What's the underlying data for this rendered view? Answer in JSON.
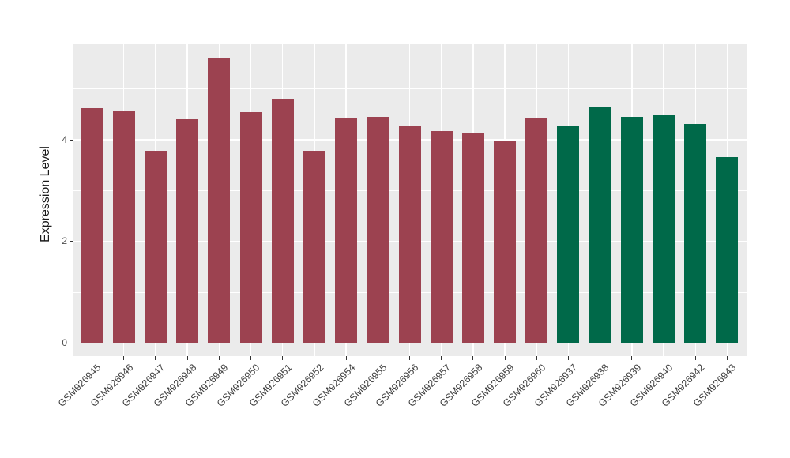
{
  "page": {
    "background": "#FFFFFF"
  },
  "y_axis": {
    "title": "Expression Level",
    "tick_labels": [
      "0",
      "2",
      "4"
    ]
  },
  "chart_data": {
    "type": "bar",
    "title": "",
    "xlabel": "",
    "ylabel": "Expression Level",
    "categories": [
      "GSM926945",
      "GSM926946",
      "GSM926947",
      "GSM926948",
      "GSM926949",
      "GSM926950",
      "GSM926951",
      "GSM926952",
      "GSM926954",
      "GSM926955",
      "GSM926956",
      "GSM926957",
      "GSM926958",
      "GSM926959",
      "GSM926960",
      "GSM926937",
      "GSM926938",
      "GSM926939",
      "GSM926940",
      "GSM926942",
      "GSM926943"
    ],
    "values": [
      4.62,
      4.57,
      3.78,
      4.41,
      5.6,
      4.54,
      4.8,
      3.79,
      4.43,
      4.45,
      4.27,
      4.18,
      4.13,
      3.97,
      4.42,
      4.28,
      4.65,
      4.45,
      4.49,
      4.31,
      3.66
    ],
    "groups": [
      {
        "color": "#9C4250",
        "count": 15
      },
      {
        "color": "#006949",
        "count": 6
      }
    ],
    "ylim": [
      -0.28,
      5.9
    ],
    "yticks_major": [
      0,
      2,
      4
    ],
    "yticks_minor": [
      1,
      3,
      5
    ],
    "grid": true,
    "legend_position": "none",
    "panel_bg": "#EBEBEB",
    "grid_color": "#FFFFFF",
    "axis_text_color": "#4D4D4D",
    "tick_color": "#333333",
    "x_labels_rotation_deg": 45
  }
}
